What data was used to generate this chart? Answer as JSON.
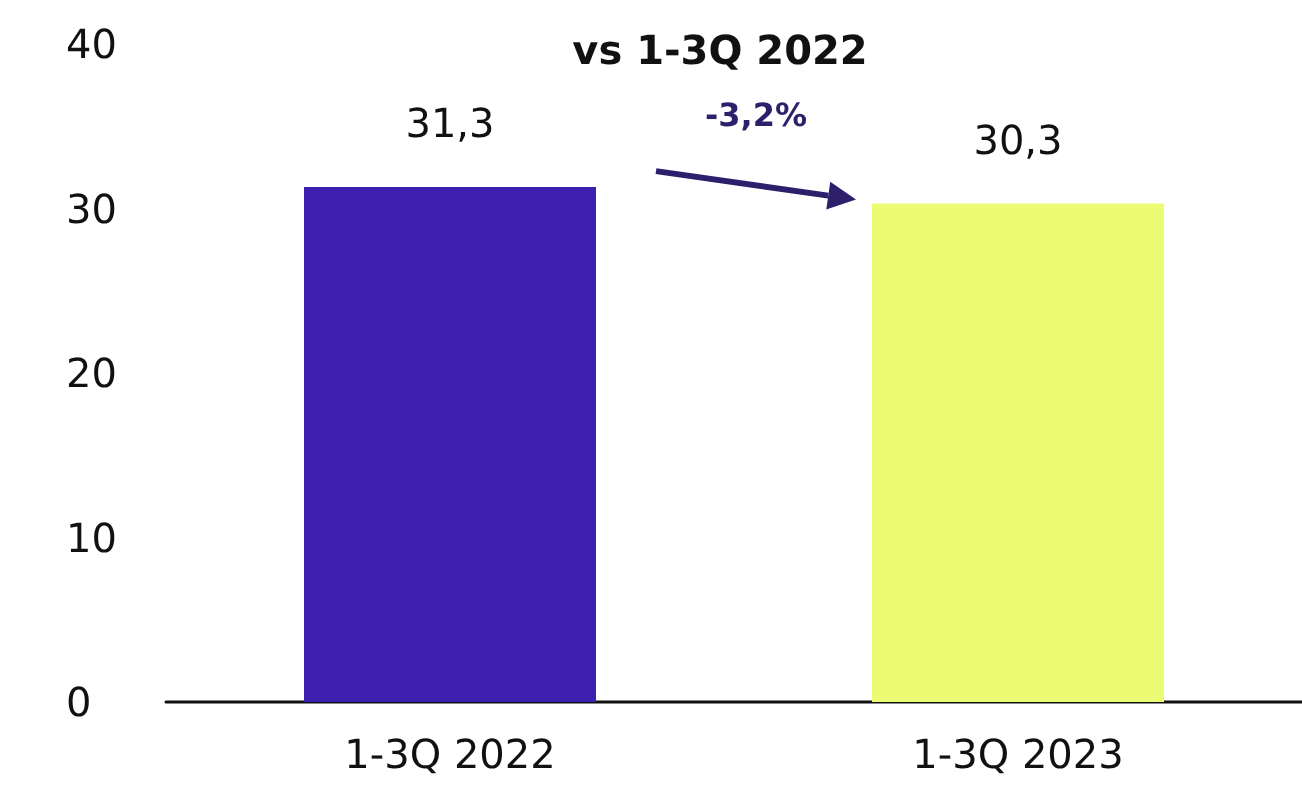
{
  "chart_data": {
    "type": "bar",
    "title": "vs 1-3Q 2022",
    "categories": [
      "1-3Q 2022",
      "1-3Q 2023"
    ],
    "values": [
      31.3,
      30.3
    ],
    "colors": [
      "#3d1fb0",
      "#ecfc72"
    ],
    "value_labels": [
      "31,3",
      "30,3"
    ],
    "annotations": [
      "-3,2%"
    ],
    "ylim": [
      0,
      40
    ],
    "yticks": [
      0,
      10,
      20,
      30,
      40
    ],
    "grid": false
  }
}
